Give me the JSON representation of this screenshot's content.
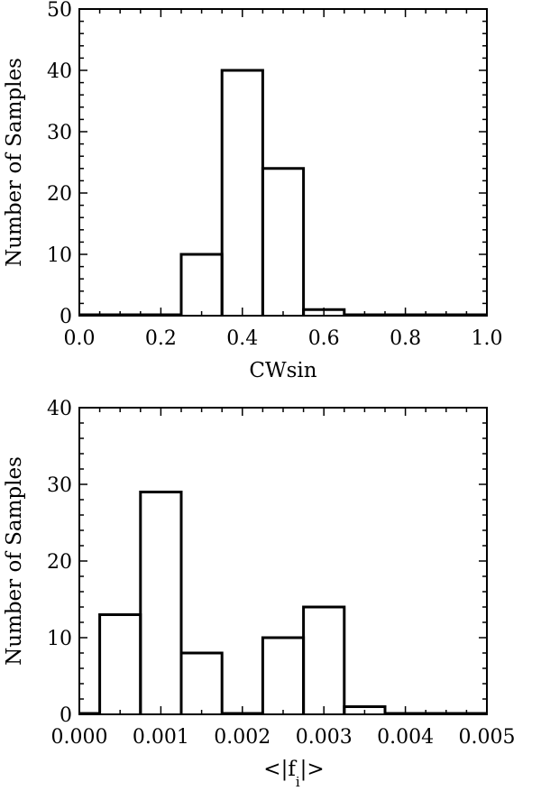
{
  "chart_data": [
    {
      "type": "bar",
      "xlabel": "CWsin",
      "ylabel": "Number of Samples",
      "xlim": [
        0.0,
        1.0
      ],
      "ylim": [
        0,
        50
      ],
      "x_ticks": [
        "0.0",
        "0.2",
        "0.4",
        "0.6",
        "0.8",
        "1.0"
      ],
      "y_ticks": [
        "0",
        "10",
        "20",
        "30",
        "40",
        "50"
      ],
      "bin_edges": [
        0.25,
        0.35,
        0.45,
        0.55,
        0.65
      ],
      "values": [
        10,
        40,
        24,
        1
      ],
      "grid": false
    },
    {
      "type": "bar",
      "xlabel_parts": {
        "pre": "<|f",
        "sub": "i",
        "post": "|>"
      },
      "ylabel": "Number of Samples",
      "xlim": [
        0.0,
        0.005
      ],
      "ylim": [
        0,
        40
      ],
      "x_ticks": [
        "0.000",
        "0.001",
        "0.002",
        "0.003",
        "0.004",
        "0.005"
      ],
      "y_ticks": [
        "0",
        "10",
        "20",
        "30",
        "40"
      ],
      "bin_edges": [
        0.00025,
        0.00075,
        0.00125,
        0.00175,
        0.00225,
        0.00275,
        0.00325,
        0.00375
      ],
      "values": [
        13,
        29,
        8,
        0,
        10,
        14,
        1
      ],
      "grid": false
    }
  ]
}
